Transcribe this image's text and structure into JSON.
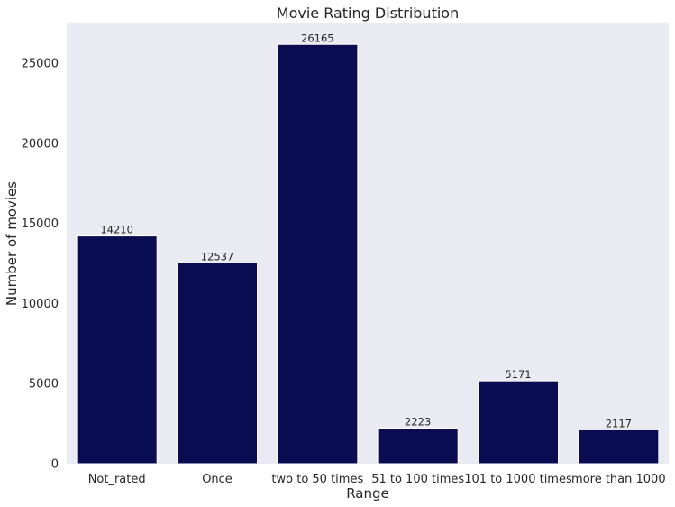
{
  "chart_data": {
    "type": "bar",
    "title": "Movie Rating Distribution",
    "xlabel": "Range",
    "ylabel": "Number of movies",
    "categories": [
      "Not_rated",
      "Once",
      "two to 50 times",
      "51 to 100 times",
      "101 to 1000 times",
      "more than 1000"
    ],
    "values": [
      14210,
      12537,
      26165,
      2223,
      5171,
      2117
    ],
    "data_labels": [
      "14210",
      "12537",
      "26165",
      "2223",
      "5171",
      "2117"
    ],
    "yticks": [
      0,
      5000,
      10000,
      15000,
      20000,
      25000
    ],
    "ytick_labels": [
      "0",
      "5000",
      "10000",
      "15000",
      "20000",
      "25000"
    ],
    "ylim": [
      0,
      27474
    ],
    "grid": false,
    "legend": "none",
    "colors": {
      "bar": "#0a0c52",
      "plot_background": "#eaeaf2",
      "page_background": "#ffffff"
    }
  }
}
